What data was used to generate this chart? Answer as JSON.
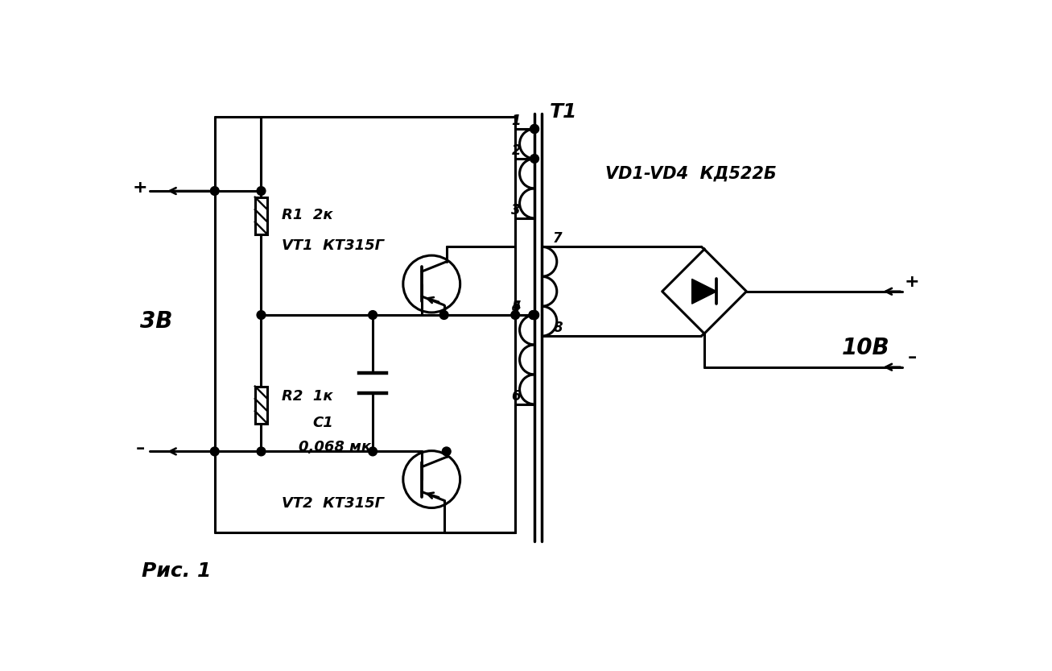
{
  "bg_color": "#ffffff",
  "line_color": "#000000",
  "lw": 2.2,
  "caption": "Рис. 1",
  "label_3v": "3В",
  "label_10v": "10В",
  "label_t1": "Т1",
  "label_vd": "VD1-VD4  КД522Б",
  "label_r1": "R1  2к",
  "label_vt1": "VT1  КТ315Г",
  "label_r2": "R2  1к",
  "label_c1": "C1",
  "label_c1_val": "0,068 мк",
  "label_vt2": "VT2  КТ315Г",
  "figw": 13.07,
  "figh": 8.33,
  "dpi": 100
}
